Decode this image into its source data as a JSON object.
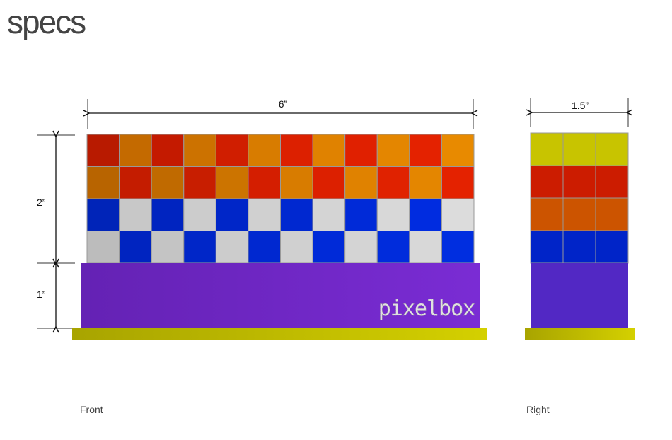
{
  "title": "specs",
  "views": {
    "front": {
      "label": "Front",
      "width_label": "6”",
      "height_top_label": "2”",
      "height_base_label": "1”",
      "logo_text": "pixelbox",
      "rows": [
        [
          "#b81a00",
          "#c46a00",
          "#c41a00",
          "#cc7200",
          "#d01e00",
          "#d87c00",
          "#dc2000",
          "#e08200",
          "#e02000",
          "#e48600",
          "#e42200",
          "#e88a00"
        ],
        [
          "#b86400",
          "#c41c00",
          "#c06a00",
          "#c81e00",
          "#cc7400",
          "#d41e00",
          "#d87c00",
          "#dc2000",
          "#e08200",
          "#e02200",
          "#e48600",
          "#e42200"
        ],
        [
          "#0024b8",
          "#c8c8c8",
          "#0024c0",
          "#cccccc",
          "#0026c8",
          "#d0d0d0",
          "#0028d0",
          "#d4d4d4",
          "#002ad8",
          "#d8d8d8",
          "#002ce0",
          "#dcdcdc"
        ],
        [
          "#bcbcbc",
          "#0024c0",
          "#c4c4c4",
          "#0026c8",
          "#cccccc",
          "#0028d0",
          "#d0d0d0",
          "#002ad8",
          "#d4d4d4",
          "#002cdc",
          "#d8d8d8",
          "#002ee0"
        ]
      ]
    },
    "right": {
      "label": "Right",
      "width_label": "1.5”",
      "rows": [
        [
          "#c8c400",
          "#c8c400",
          "#c8c400"
        ],
        [
          "#cc1c00",
          "#cc1c00",
          "#cc1c00"
        ],
        [
          "#cc5400",
          "#cc5400",
          "#cc5400"
        ],
        [
          "#0024c8",
          "#0024c8",
          "#0024c8"
        ]
      ]
    }
  },
  "colors": {
    "base_purple": "#7028c4",
    "right_purple": "#5228c4",
    "plinth_yellow": "#c8c400",
    "grid_line": "#999999",
    "dimension_line": "#111111"
  }
}
